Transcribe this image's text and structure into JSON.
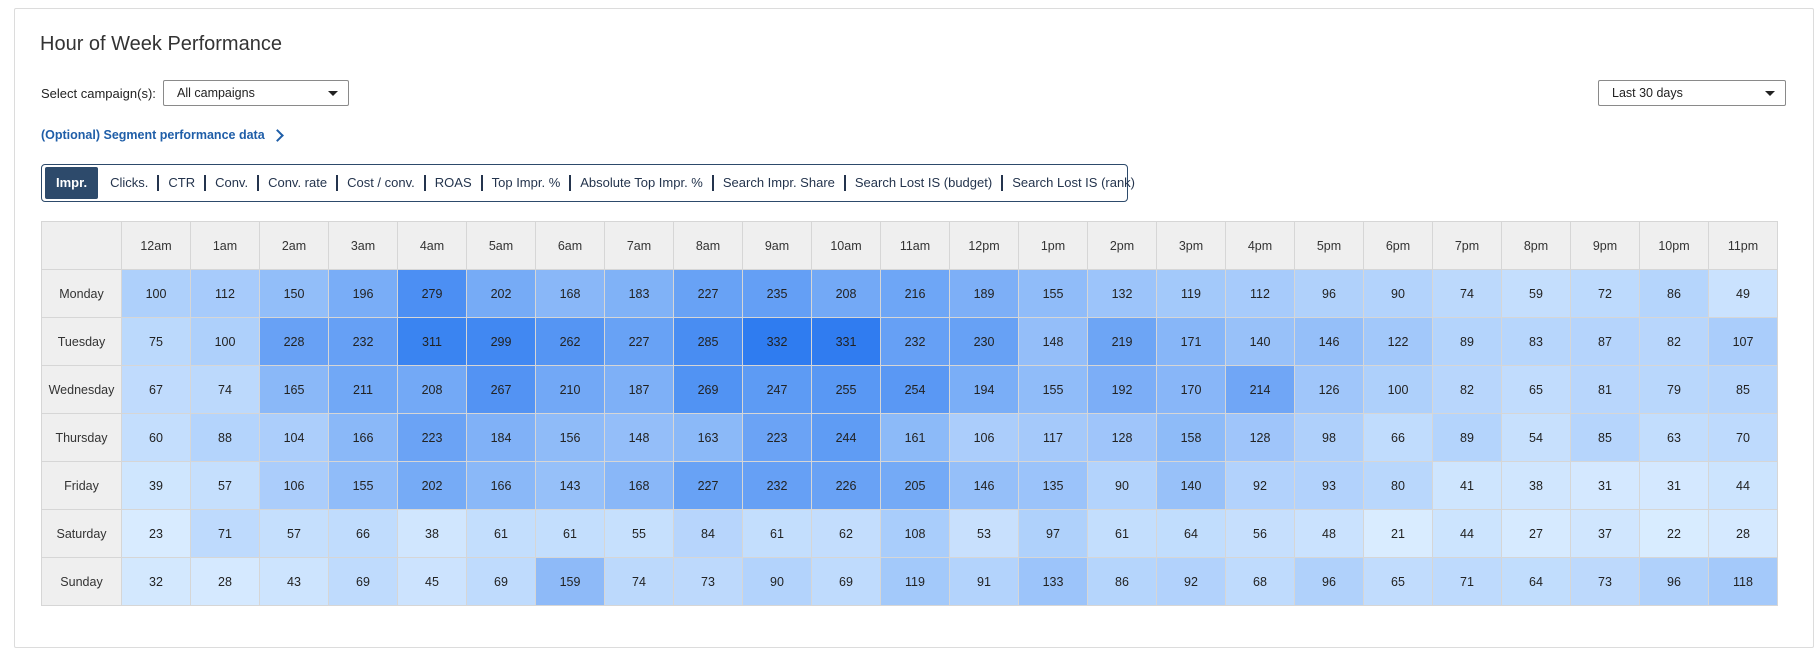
{
  "title": "Hour of Week Performance",
  "campaign_select": {
    "label": "Select campaign(s):",
    "value": "All campaigns"
  },
  "date_range": {
    "value": "Last 30 days"
  },
  "segment_link": "(Optional) Segment performance data",
  "metrics": [
    "Impr.",
    "Clicks.",
    "CTR",
    "Conv.",
    "Conv. rate",
    "Cost / conv.",
    "ROAS",
    "Top Impr. %",
    "Absolute Top Impr. %",
    "Search Impr. Share",
    "Search Lost IS (budget)",
    "Search Lost IS (rank)"
  ],
  "active_metric": "Impr.",
  "heatmap": {
    "hours": [
      "12am",
      "1am",
      "2am",
      "3am",
      "4am",
      "5am",
      "6am",
      "7am",
      "8am",
      "9am",
      "10am",
      "11am",
      "12pm",
      "1pm",
      "2pm",
      "3pm",
      "4pm",
      "5pm",
      "6pm",
      "7pm",
      "8pm",
      "9pm",
      "10pm",
      "11pm"
    ],
    "days": [
      "Monday",
      "Tuesday",
      "Wednesday",
      "Thursday",
      "Friday",
      "Saturday",
      "Sunday"
    ],
    "values": [
      [
        100,
        112,
        150,
        196,
        279,
        202,
        168,
        183,
        227,
        235,
        208,
        216,
        189,
        155,
        132,
        119,
        112,
        96,
        90,
        74,
        59,
        72,
        86,
        49
      ],
      [
        75,
        100,
        228,
        232,
        311,
        299,
        262,
        227,
        285,
        332,
        331,
        232,
        230,
        148,
        219,
        171,
        140,
        146,
        122,
        89,
        83,
        87,
        82,
        107
      ],
      [
        67,
        74,
        165,
        211,
        208,
        267,
        210,
        187,
        269,
        247,
        255,
        254,
        194,
        155,
        192,
        170,
        214,
        126,
        100,
        82,
        65,
        81,
        79,
        85
      ],
      [
        60,
        88,
        104,
        166,
        223,
        184,
        156,
        148,
        163,
        223,
        244,
        161,
        106,
        117,
        128,
        158,
        128,
        98,
        66,
        89,
        54,
        85,
        63,
        70
      ],
      [
        39,
        57,
        106,
        155,
        202,
        166,
        143,
        168,
        227,
        232,
        226,
        205,
        146,
        135,
        90,
        140,
        92,
        93,
        80,
        41,
        38,
        31,
        31,
        44
      ],
      [
        23,
        71,
        57,
        66,
        38,
        61,
        61,
        55,
        84,
        61,
        62,
        108,
        53,
        97,
        61,
        64,
        56,
        48,
        21,
        44,
        27,
        37,
        22,
        28
      ],
      [
        32,
        28,
        43,
        69,
        45,
        69,
        159,
        74,
        73,
        90,
        69,
        119,
        91,
        133,
        86,
        92,
        68,
        96,
        65,
        71,
        64,
        73,
        96,
        118
      ]
    ],
    "color_low": "#d9ecff",
    "color_high": "#2f7cf0"
  }
}
